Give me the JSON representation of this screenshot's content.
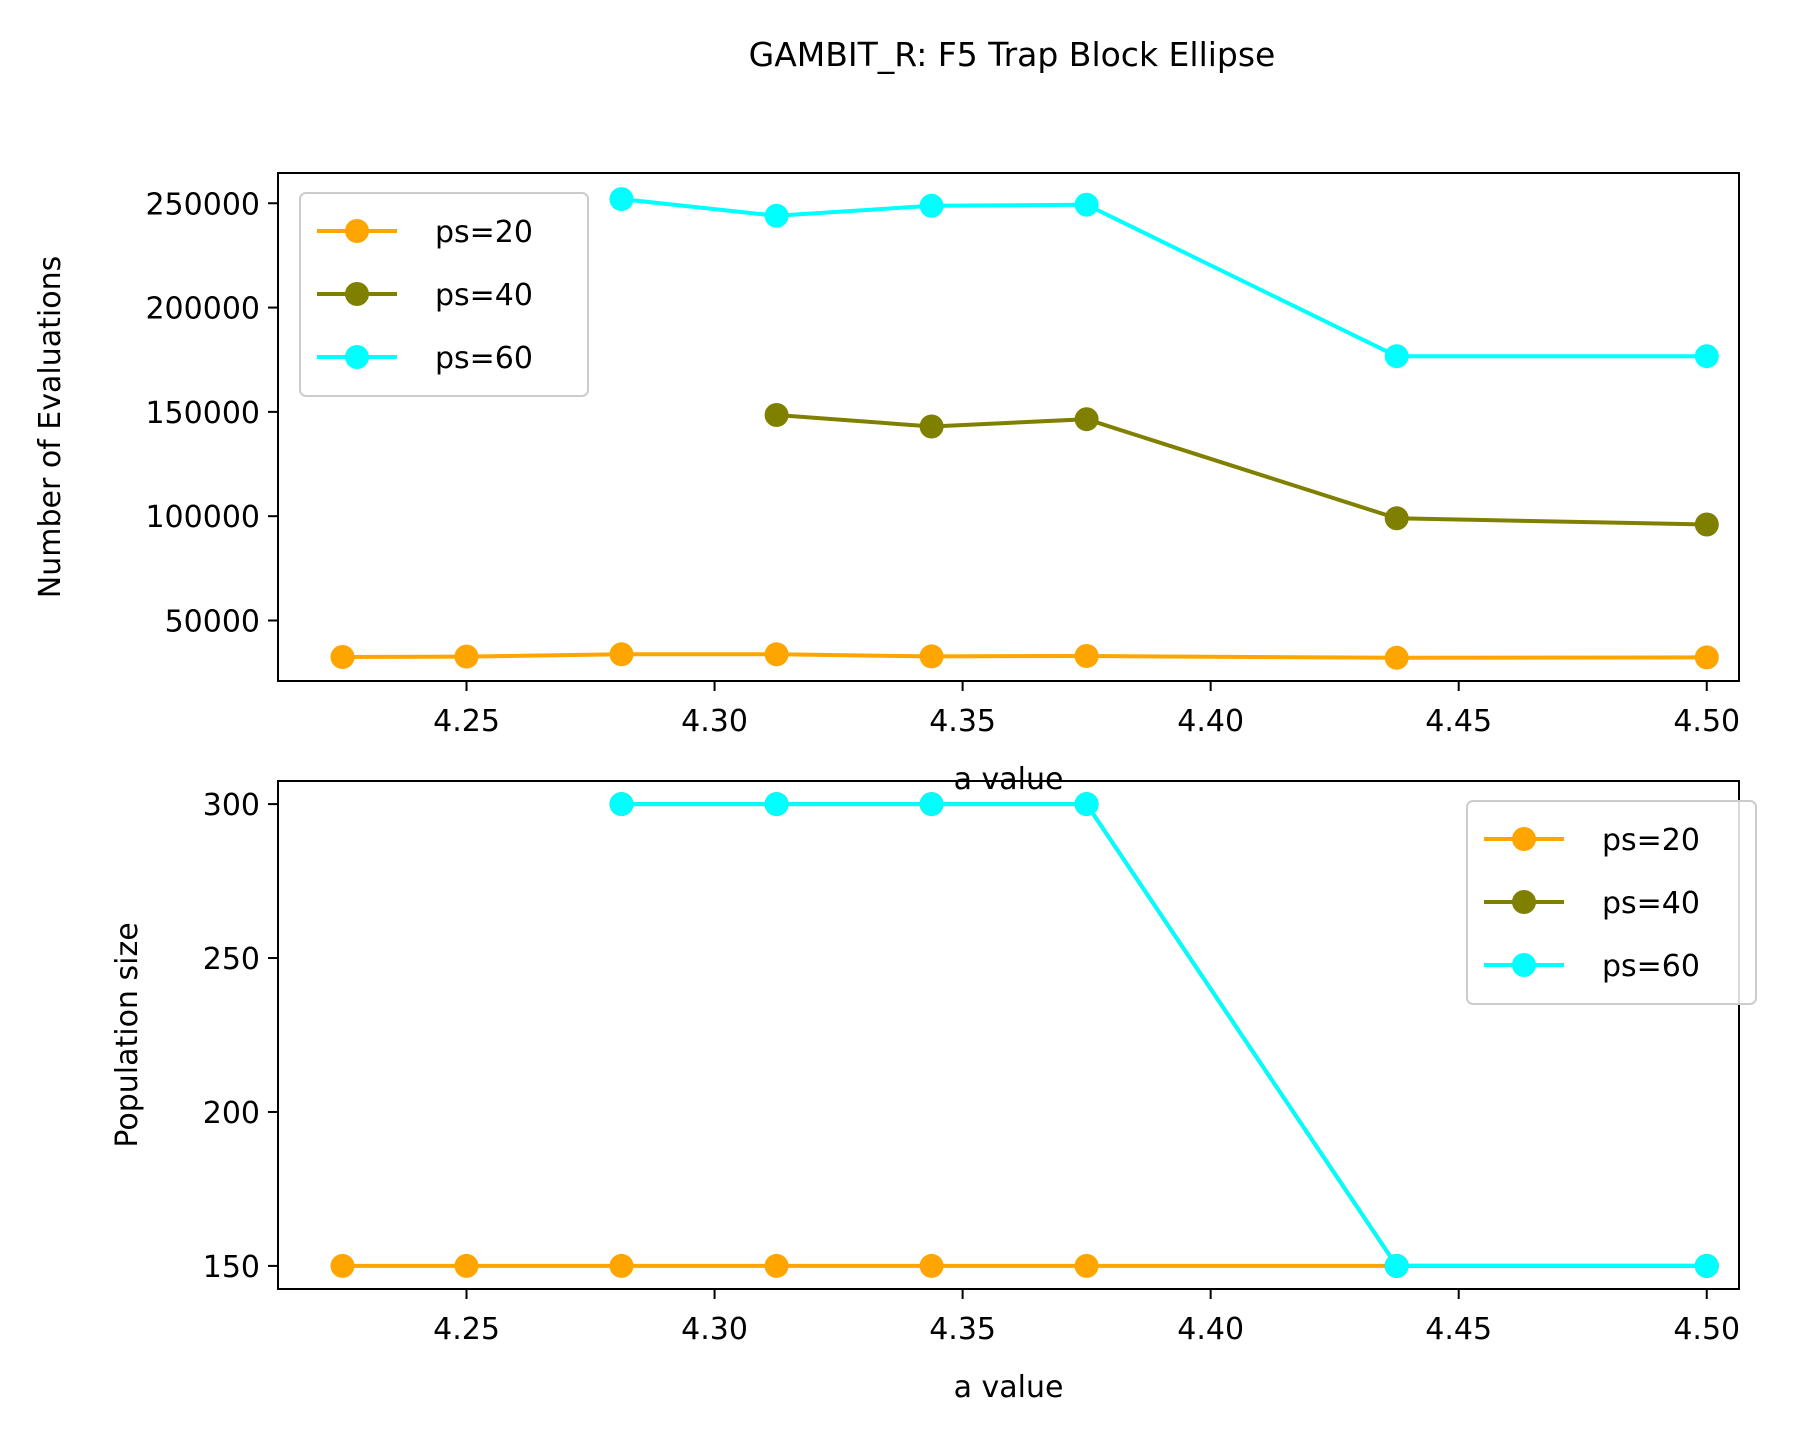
{
  "figure": {
    "title": "GAMBIT_R: F5 Trap Block Ellipse"
  },
  "colors": {
    "ps20": "#ffa500",
    "ps40": "#808000",
    "ps60": "#00ffff"
  },
  "chart_data": [
    {
      "type": "line",
      "xlabel": "a value",
      "ylabel": "Number of Evaluations",
      "xlim": [
        4.212,
        4.5065
      ],
      "ylim": [
        21000,
        264500
      ],
      "xticks": [
        "4.25",
        "4.30",
        "4.35",
        "4.40",
        "4.45",
        "4.50"
      ],
      "yticks": [
        "50000",
        "100000",
        "150000",
        "200000",
        "250000"
      ],
      "legend": "upper left",
      "series": [
        {
          "name": "ps=20",
          "color": "#ffa500",
          "x": [
            4.225,
            4.25,
            4.28125,
            4.3125,
            4.34375,
            4.375,
            4.4375,
            4.5
          ],
          "y": [
            32500,
            32700,
            33800,
            33800,
            32800,
            33000,
            32100,
            32300
          ]
        },
        {
          "name": "ps=40",
          "color": "#808000",
          "x": [
            4.3125,
            4.34375,
            4.375,
            4.4375,
            4.5
          ],
          "y": [
            148500,
            143000,
            146500,
            99000,
            96000
          ]
        },
        {
          "name": "ps=60",
          "color": "#00ffff",
          "x": [
            4.28125,
            4.3125,
            4.34375,
            4.375,
            4.4375,
            4.5
          ],
          "y": [
            252000,
            244000,
            248800,
            249300,
            176700,
            176700
          ]
        }
      ]
    },
    {
      "type": "line",
      "xlabel": "a value",
      "ylabel": "Population size",
      "xlim": [
        4.212,
        4.5065
      ],
      "ylim": [
        142.5,
        307.5
      ],
      "xticks": [
        "4.25",
        "4.30",
        "4.35",
        "4.40",
        "4.45",
        "4.50"
      ],
      "yticks": [
        "150",
        "200",
        "250",
        "300"
      ],
      "legend": "upper right",
      "series": [
        {
          "name": "ps=20",
          "color": "#ffa500",
          "x": [
            4.225,
            4.25,
            4.28125,
            4.3125,
            4.34375,
            4.375,
            4.4375,
            4.5
          ],
          "y": [
            150,
            150,
            150,
            150,
            150,
            150,
            150,
            150
          ]
        },
        {
          "name": "ps=40",
          "color": "#808000",
          "x": [
            4.28125,
            4.3125,
            4.34375,
            4.375,
            4.4375,
            4.5
          ],
          "y": [
            300,
            300,
            300,
            300,
            150,
            150
          ]
        },
        {
          "name": "ps=60",
          "color": "#00ffff",
          "x": [
            4.28125,
            4.3125,
            4.34375,
            4.375,
            4.4375,
            4.5
          ],
          "y": [
            300,
            300,
            300,
            300,
            150,
            150
          ]
        }
      ]
    }
  ]
}
